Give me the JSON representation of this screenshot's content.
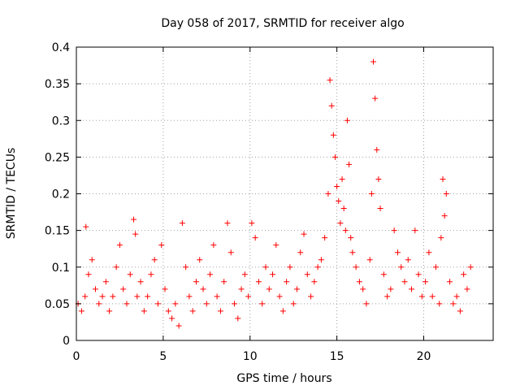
{
  "chart_data": {
    "type": "scatter",
    "title": "Day 058 of 2017, SRMTID for receiver algo",
    "xlabel": "GPS time / hours",
    "ylabel": "SRMTID / TECUs",
    "xlim": [
      0,
      24
    ],
    "ylim": [
      0,
      0.4
    ],
    "x_ticks": [
      0,
      5,
      10,
      15,
      20
    ],
    "x_tick_labels": [
      "0",
      "5",
      "10",
      "15",
      "20"
    ],
    "y_ticks": [
      0,
      0.05,
      0.1,
      0.15,
      0.2,
      0.25,
      0.3,
      0.35,
      0.4
    ],
    "y_tick_labels": [
      "0",
      "0.05",
      "0.1",
      "0.15",
      "0.2",
      "0.25",
      "0.3",
      "0.35",
      "0.4"
    ],
    "grid": true,
    "marker": "+",
    "color": "#ff0000",
    "series": [
      {
        "name": "SRMTID",
        "x": [
          0.1,
          0.3,
          0.5,
          0.55,
          0.7,
          0.9,
          1.1,
          1.3,
          1.5,
          1.7,
          1.9,
          2.1,
          2.3,
          2.5,
          2.7,
          2.9,
          3.1,
          3.3,
          3.4,
          3.5,
          3.7,
          3.9,
          4.1,
          4.3,
          4.5,
          4.7,
          4.9,
          5.1,
          5.3,
          5.5,
          5.7,
          5.9,
          6.1,
          6.3,
          6.5,
          6.7,
          6.9,
          7.1,
          7.3,
          7.5,
          7.7,
          7.9,
          8.1,
          8.3,
          8.5,
          8.7,
          8.9,
          9.1,
          9.3,
          9.5,
          9.7,
          9.9,
          10.1,
          10.3,
          10.5,
          10.7,
          10.9,
          11.1,
          11.3,
          11.5,
          11.7,
          11.9,
          12.1,
          12.3,
          12.5,
          12.7,
          12.9,
          13.1,
          13.3,
          13.5,
          13.7,
          13.9,
          14.1,
          14.3,
          14.5,
          14.6,
          14.7,
          14.8,
          14.9,
          15.0,
          15.1,
          15.2,
          15.3,
          15.4,
          15.5,
          15.6,
          15.7,
          15.8,
          15.9,
          16.1,
          16.3,
          16.5,
          16.7,
          16.9,
          17.0,
          17.1,
          17.2,
          17.3,
          17.4,
          17.5,
          17.7,
          17.9,
          18.1,
          18.3,
          18.5,
          18.7,
          18.9,
          19.1,
          19.3,
          19.5,
          19.7,
          19.9,
          20.1,
          20.3,
          20.5,
          20.7,
          20.9,
          21.0,
          21.1,
          21.2,
          21.3,
          21.5,
          21.7,
          21.9,
          22.1,
          22.3,
          22.5,
          22.7
        ],
        "y": [
          0.05,
          0.04,
          0.06,
          0.155,
          0.09,
          0.11,
          0.07,
          0.05,
          0.06,
          0.08,
          0.04,
          0.06,
          0.1,
          0.13,
          0.07,
          0.05,
          0.09,
          0.165,
          0.145,
          0.06,
          0.08,
          0.04,
          0.06,
          0.09,
          0.11,
          0.05,
          0.13,
          0.07,
          0.04,
          0.03,
          0.05,
          0.02,
          0.16,
          0.1,
          0.06,
          0.04,
          0.08,
          0.11,
          0.07,
          0.05,
          0.09,
          0.13,
          0.06,
          0.04,
          0.08,
          0.16,
          0.12,
          0.05,
          0.03,
          0.07,
          0.09,
          0.06,
          0.16,
          0.14,
          0.08,
          0.05,
          0.1,
          0.07,
          0.09,
          0.13,
          0.06,
          0.04,
          0.08,
          0.1,
          0.05,
          0.07,
          0.12,
          0.145,
          0.09,
          0.06,
          0.08,
          0.1,
          0.11,
          0.14,
          0.2,
          0.355,
          0.32,
          0.28,
          0.25,
          0.21,
          0.19,
          0.16,
          0.22,
          0.18,
          0.15,
          0.3,
          0.24,
          0.14,
          0.12,
          0.1,
          0.08,
          0.07,
          0.05,
          0.11,
          0.2,
          0.38,
          0.33,
          0.26,
          0.22,
          0.18,
          0.09,
          0.06,
          0.07,
          0.15,
          0.12,
          0.1,
          0.08,
          0.11,
          0.07,
          0.15,
          0.09,
          0.06,
          0.08,
          0.12,
          0.06,
          0.1,
          0.05,
          0.14,
          0.22,
          0.17,
          0.2,
          0.08,
          0.05,
          0.06,
          0.04,
          0.09,
          0.07,
          0.1
        ]
      }
    ]
  }
}
